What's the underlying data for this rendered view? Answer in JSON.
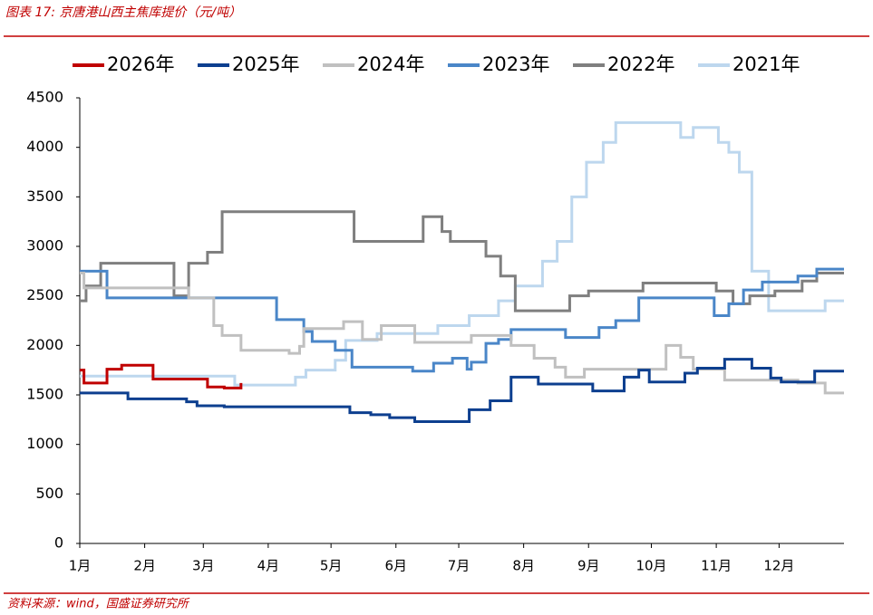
{
  "header": {
    "title": "图表 17: 京唐港山西主焦库提价（元/吨）"
  },
  "chart_data": {
    "type": "line",
    "drawstyle": "steps-post",
    "xlim": [
      1,
      366
    ],
    "xticks": [
      {
        "value": 1,
        "label": "1月"
      },
      {
        "value": 32,
        "label": "2月"
      },
      {
        "value": 60,
        "label": "3月"
      },
      {
        "value": 91,
        "label": "4月"
      },
      {
        "value": 121,
        "label": "5月"
      },
      {
        "value": 152,
        "label": "6月"
      },
      {
        "value": 182,
        "label": "7月"
      },
      {
        "value": 213,
        "label": "8月"
      },
      {
        "value": 244,
        "label": "9月"
      },
      {
        "value": 274,
        "label": "10月"
      },
      {
        "value": 305,
        "label": "11月"
      },
      {
        "value": 335,
        "label": "12月"
      }
    ],
    "ylim": [
      0,
      4500
    ],
    "yticks": [
      0,
      500,
      1000,
      1500,
      2000,
      2500,
      3000,
      3500,
      4000,
      4500
    ],
    "grid": false,
    "legend": "top",
    "series": [
      {
        "name": "2026年",
        "color": "#c00000",
        "x": [
          1,
          3,
          14,
          21,
          36,
          62,
          70,
          78
        ],
        "values": [
          1750,
          1620,
          1760,
          1800,
          1660,
          1580,
          1570,
          1620
        ]
      },
      {
        "name": "2025年",
        "color": "#0d3f8f",
        "x": [
          1,
          24,
          52,
          57,
          70,
          130,
          140,
          149,
          161,
          187,
          197,
          207,
          220,
          246,
          261,
          268,
          273,
          290,
          296,
          309,
          322,
          331,
          336,
          352,
          366
        ],
        "values": [
          1520,
          1460,
          1430,
          1390,
          1380,
          1320,
          1300,
          1270,
          1230,
          1350,
          1440,
          1680,
          1610,
          1540,
          1680,
          1750,
          1630,
          1720,
          1770,
          1860,
          1770,
          1670,
          1630,
          1740,
          1740
        ]
      },
      {
        "name": "2024年",
        "color": "#c0c0c0",
        "x": [
          1,
          3,
          53,
          65,
          69,
          78,
          101,
          106,
          108,
          127,
          136,
          145,
          161,
          188,
          207,
          218,
          228,
          233,
          242,
          281,
          288,
          294,
          309,
          344,
          357,
          366
        ],
        "values": [
          2730,
          2580,
          2480,
          2200,
          2100,
          1950,
          1920,
          1990,
          2170,
          2240,
          2060,
          2200,
          2030,
          2100,
          2000,
          1870,
          1780,
          1680,
          1760,
          2000,
          1880,
          1760,
          1650,
          1620,
          1520,
          1520
        ]
      },
      {
        "name": "2023年",
        "color": "#4a86c8",
        "x": [
          1,
          14,
          95,
          108,
          112,
          123,
          131,
          160,
          170,
          179,
          186,
          188,
          195,
          201,
          207,
          233,
          249,
          257,
          268,
          304,
          311,
          318,
          327,
          344,
          353,
          366
        ],
        "values": [
          2750,
          2480,
          2260,
          2140,
          2040,
          1950,
          1780,
          1740,
          1820,
          1870,
          1760,
          1830,
          2020,
          2060,
          2160,
          2080,
          2180,
          2250,
          2480,
          2300,
          2420,
          2560,
          2640,
          2700,
          2770,
          2770
        ]
      },
      {
        "name": "2022年",
        "color": "#7f7f7f",
        "x": [
          1,
          4,
          11,
          46,
          53,
          62,
          69,
          132,
          165,
          174,
          178,
          195,
          202,
          209,
          235,
          244,
          270,
          305,
          313,
          321,
          333,
          346,
          353,
          366
        ],
        "values": [
          2450,
          2600,
          2830,
          2500,
          2830,
          2940,
          3350,
          3050,
          3300,
          3150,
          3050,
          2900,
          2700,
          2350,
          2500,
          2550,
          2630,
          2550,
          2420,
          2500,
          2550,
          2650,
          2730,
          2730
        ]
      },
      {
        "name": "2021年",
        "color": "#bdd7ee",
        "x": [
          1,
          75,
          104,
          109,
          123,
          128,
          143,
          172,
          187,
          201,
          209,
          222,
          229,
          236,
          243,
          251,
          257,
          288,
          294,
          306,
          311,
          316,
          322,
          330,
          357,
          366
        ],
        "values": [
          1690,
          1600,
          1680,
          1750,
          1850,
          2050,
          2120,
          2200,
          2300,
          2450,
          2600,
          2850,
          3050,
          3500,
          3850,
          4050,
          4250,
          4100,
          4200,
          4050,
          3950,
          3750,
          2750,
          2350,
          2450,
          2450
        ]
      }
    ]
  },
  "footer": {
    "source": "资料来源：wind，国盛证券研究所"
  }
}
